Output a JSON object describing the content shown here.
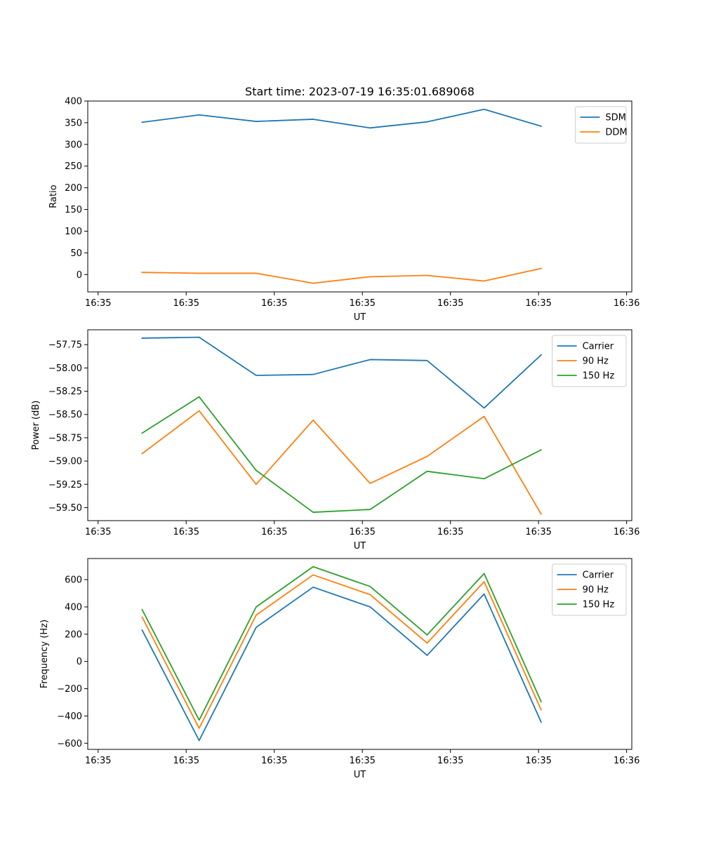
{
  "figure": {
    "title": "Start time: 2023-07-19 16:35:01.689068"
  },
  "chart_data": [
    {
      "type": "line",
      "xlabel": "UT",
      "ylabel": "Ratio",
      "x_tick_labels": [
        "16:35",
        "16:35",
        "16:35",
        "16:35",
        "16:35",
        "16:35",
        "16:36"
      ],
      "y_ticks": [
        0,
        50,
        100,
        150,
        200,
        250,
        300,
        350,
        400
      ],
      "y_tick_labels": [
        "0",
        "50",
        "100",
        "150",
        "200",
        "250",
        "300",
        "350",
        "400"
      ],
      "ylim": [
        -40,
        400
      ],
      "legend_position": "top-right",
      "series": [
        {
          "name": "SDM",
          "color": "#1f77b4",
          "values": [
            351,
            368,
            353,
            358,
            338,
            352,
            381,
            342
          ]
        },
        {
          "name": "DDM",
          "color": "#ff7f0e",
          "values": [
            5,
            3,
            3,
            -20,
            -5,
            -2,
            -15,
            14
          ]
        }
      ]
    },
    {
      "type": "line",
      "xlabel": "UT",
      "ylabel": "Power (dB)",
      "x_tick_labels": [
        "16:35",
        "16:35",
        "16:35",
        "16:35",
        "16:35",
        "16:35",
        "16:36"
      ],
      "y_ticks": [
        -59.5,
        -59.25,
        -59.0,
        -58.75,
        -58.5,
        -58.25,
        -58.0,
        -57.75
      ],
      "y_tick_labels": [
        "−59.50",
        "−59.25",
        "−59.00",
        "−58.75",
        "−58.50",
        "−58.25",
        "−58.00",
        "−57.75"
      ],
      "ylim": [
        -59.64,
        -57.59
      ],
      "legend_position": "top-right",
      "series": [
        {
          "name": "Carrier",
          "color": "#1f77b4",
          "values": [
            -57.68,
            -57.67,
            -58.08,
            -58.07,
            -57.91,
            -57.92,
            -58.43,
            -57.86
          ]
        },
        {
          "name": "90 Hz",
          "color": "#ff7f0e",
          "values": [
            -58.92,
            -58.46,
            -59.25,
            -58.56,
            -59.24,
            -58.95,
            -58.52,
            -59.57
          ]
        },
        {
          "name": "150 Hz",
          "color": "#2ca02c",
          "values": [
            -58.7,
            -58.31,
            -59.1,
            -59.55,
            -59.52,
            -59.11,
            -59.19,
            -58.88
          ]
        }
      ]
    },
    {
      "type": "line",
      "xlabel": "UT",
      "ylabel": "Frequency (Hz)",
      "x_tick_labels": [
        "16:35",
        "16:35",
        "16:35",
        "16:35",
        "16:35",
        "16:35",
        "16:36"
      ],
      "y_ticks": [
        -600,
        -400,
        -200,
        0,
        200,
        400,
        600
      ],
      "y_tick_labels": [
        "−600",
        "−400",
        "−200",
        "0",
        "200",
        "400",
        "600"
      ],
      "ylim": [
        -645,
        755
      ],
      "legend_position": "top-right",
      "series": [
        {
          "name": "Carrier",
          "color": "#1f77b4",
          "values": [
            230,
            -580,
            250,
            545,
            400,
            45,
            495,
            -445
          ]
        },
        {
          "name": "90 Hz",
          "color": "#ff7f0e",
          "values": [
            325,
            -490,
            340,
            635,
            490,
            135,
            585,
            -355
          ]
        },
        {
          "name": "150 Hz",
          "color": "#2ca02c",
          "values": [
            380,
            -430,
            400,
            695,
            550,
            195,
            645,
            -295
          ]
        }
      ]
    }
  ]
}
